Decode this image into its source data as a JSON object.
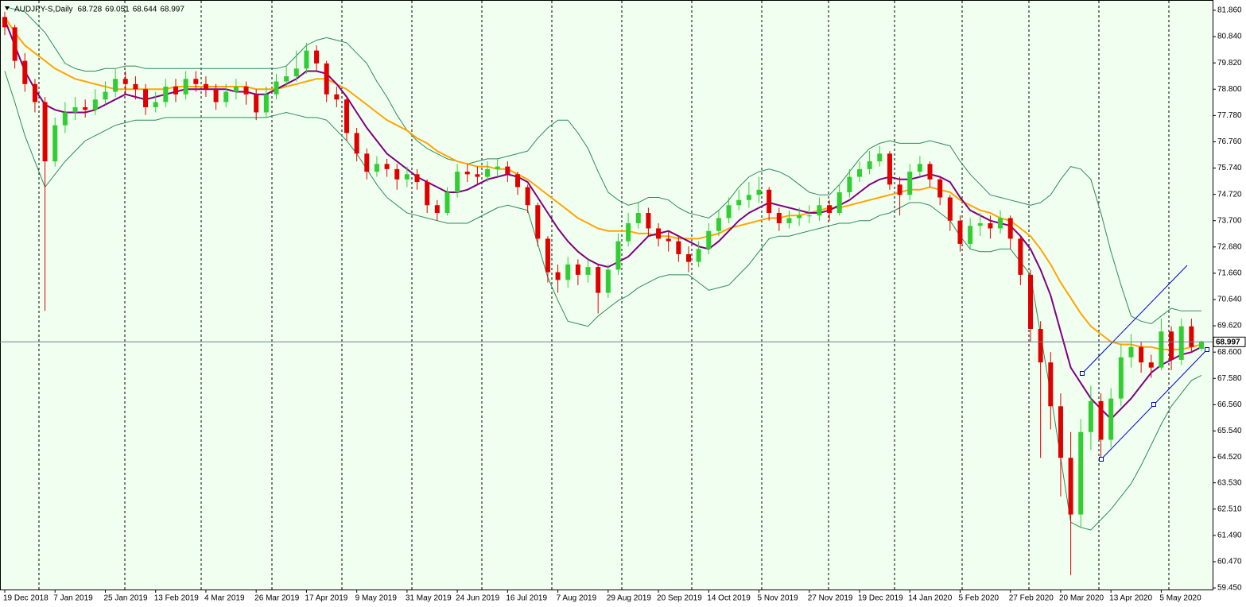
{
  "chart_data": {
    "type": "candlestick",
    "title": "AUDJPY-S,Daily",
    "header_values": [
      68.728,
      69.051,
      68.644,
      68.997
    ],
    "last_price": 68.997,
    "up_color": "#32cd32",
    "down_color": "#e00000",
    "background": "#f0fff0",
    "ylim": [
      59.39,
      82.26
    ],
    "yticks": [
      {
        "value": 81.86,
        "label": "81.860"
      },
      {
        "value": 80.84,
        "label": "80.840"
      },
      {
        "value": 79.82,
        "label": "79.820"
      },
      {
        "value": 78.8,
        "label": "78.800"
      },
      {
        "value": 77.78,
        "label": "77.780"
      },
      {
        "value": 76.76,
        "label": "76.760"
      },
      {
        "value": 75.74,
        "label": "75.740"
      },
      {
        "value": 74.72,
        "label": "74.720"
      },
      {
        "value": 73.7,
        "label": "73.700"
      },
      {
        "value": 72.68,
        "label": "72.680"
      },
      {
        "value": 71.66,
        "label": "71.660"
      },
      {
        "value": 70.64,
        "label": "70.640"
      },
      {
        "value": 69.62,
        "label": "69.620"
      },
      {
        "value": 68.6,
        "label": "68.600"
      },
      {
        "value": 67.58,
        "label": "67.580"
      },
      {
        "value": 66.56,
        "label": "66.560"
      },
      {
        "value": 65.54,
        "label": "65.540"
      },
      {
        "value": 64.52,
        "label": "64.520"
      },
      {
        "value": 63.53,
        "label": "63.530"
      },
      {
        "value": 62.51,
        "label": "62.510"
      },
      {
        "value": 61.49,
        "label": "61.490"
      },
      {
        "value": 60.47,
        "label": "60.470"
      },
      {
        "value": 59.45,
        "label": "59.450"
      }
    ],
    "categories": [
      "19 Dec 2018",
      null,
      null,
      null,
      null,
      "7 Jan 2019",
      null,
      null,
      null,
      null,
      "25 Jan 2019",
      null,
      null,
      null,
      null,
      "13 Feb 2019",
      null,
      null,
      null,
      null,
      "4 Mar 2019",
      null,
      null,
      null,
      null,
      "26 Mar 2019",
      null,
      null,
      null,
      null,
      "17 Apr 2019",
      null,
      null,
      null,
      null,
      "9 May 2019",
      null,
      null,
      null,
      null,
      "31 May 2019",
      null,
      null,
      null,
      null,
      "24 Jun 2019",
      null,
      null,
      null,
      null,
      "16 Jul 2019",
      null,
      null,
      null,
      null,
      "7 Aug 2019",
      null,
      null,
      null,
      null,
      "29 Aug 2019",
      null,
      null,
      null,
      null,
      "20 Sep 2019",
      null,
      null,
      null,
      null,
      "14 Oct 2019",
      null,
      null,
      null,
      null,
      "5 Nov 2019",
      null,
      null,
      null,
      null,
      "27 Nov 2019",
      null,
      null,
      null,
      null,
      "19 Dec 2019",
      null,
      null,
      null,
      null,
      "14 Jan 2020",
      null,
      null,
      null,
      null,
      "5 Feb 2020",
      null,
      null,
      null,
      null,
      "27 Feb 2020",
      null,
      null,
      null,
      null,
      "20 Mar 2020",
      null,
      null,
      null,
      null,
      "13 Apr 2020",
      null,
      null,
      null,
      null,
      "5 May 2020",
      null,
      null,
      null,
      null
    ],
    "open": [
      81.6,
      81.2,
      79.9,
      79.0,
      78.3,
      76.0,
      77.4,
      77.9,
      78.1,
      78.0,
      78.4,
      78.7,
      79.2,
      79.0,
      78.8,
      78.1,
      78.3,
      78.9,
      78.6,
      79.2,
      79.0,
      78.8,
      78.3,
      78.7,
      78.9,
      78.6,
      77.9,
      78.6,
      79.1,
      79.3,
      79.6,
      80.3,
      79.8,
      78.6,
      78.4,
      77.1,
      76.3,
      75.6,
      75.9,
      75.7,
      75.3,
      75.5,
      75.2,
      74.3,
      74.0,
      74.8,
      75.6,
      75.5,
      75.4,
      75.7,
      75.8,
      75.5,
      75.0,
      74.3,
      73.0,
      71.7,
      71.4,
      72.0,
      71.6,
      71.9,
      70.9,
      71.8,
      72.9,
      73.6,
      74.0,
      73.4,
      73.0,
      72.9,
      72.4,
      72.1,
      72.6,
      73.3,
      73.8,
      74.3,
      74.5,
      74.7,
      74.9,
      74.0,
      73.6,
      73.8,
      73.9,
      73.9,
      74.3,
      74.0,
      74.8,
      75.4,
      75.7,
      76.0,
      76.3,
      75.1,
      74.7,
      75.6,
      75.9,
      75.3,
      74.6,
      73.7,
      72.8,
      73.5,
      73.6,
      73.4,
      73.8,
      73.0,
      71.6,
      69.5,
      68.2,
      66.5,
      64.5,
      62.3,
      65.5,
      66.7,
      65.2,
      66.8,
      68.4,
      68.8,
      68.2,
      68.0,
      69.4,
      68.3,
      69.6,
      68.728
    ],
    "high": [
      81.8,
      81.3,
      80.2,
      79.2,
      78.5,
      77.7,
      78.3,
      78.5,
      78.4,
      78.8,
      79.1,
      79.6,
      79.5,
      79.3,
      79.0,
      78.7,
      79.2,
      79.2,
      79.5,
      79.5,
      79.3,
      79.0,
      79.0,
      79.2,
      79.1,
      78.8,
      78.9,
      79.4,
      79.7,
      80.3,
      80.6,
      80.5,
      79.9,
      78.9,
      78.5,
      77.3,
      76.5,
      76.2,
      76.1,
      75.9,
      75.8,
      75.7,
      75.3,
      74.5,
      75.0,
      75.9,
      75.9,
      75.8,
      76.0,
      76.1,
      76.0,
      75.6,
      75.1,
      74.4,
      73.1,
      72.0,
      72.3,
      72.2,
      72.2,
      72.0,
      72.0,
      73.2,
      74.0,
      74.4,
      74.2,
      73.6,
      73.3,
      73.1,
      72.7,
      72.9,
      73.6,
      74.1,
      74.6,
      74.9,
      75.2,
      75.4,
      75.0,
      74.2,
      74.1,
      74.2,
      74.3,
      74.6,
      74.5,
      75.1,
      75.7,
      76.0,
      76.4,
      76.6,
      76.4,
      75.4,
      75.9,
      76.2,
      76.0,
      75.4,
      74.7,
      73.9,
      73.8,
      74.0,
      73.9,
      74.1,
      73.9,
      73.1,
      71.8,
      69.8,
      68.6,
      67.0,
      65.5,
      66.0,
      67.3,
      67.0,
      67.2,
      68.9,
      69.3,
      69.0,
      68.5,
      69.9,
      69.6,
      69.9,
      69.9,
      69.051
    ],
    "low": [
      80.9,
      79.6,
      78.7,
      77.9,
      70.2,
      75.8,
      77.1,
      77.6,
      77.7,
      77.8,
      78.2,
      78.5,
      78.6,
      78.4,
      77.8,
      77.9,
      78.1,
      78.3,
      78.4,
      78.7,
      78.5,
      78.0,
      78.1,
      78.4,
      78.2,
      77.6,
      77.7,
      78.4,
      78.9,
      79.1,
      79.4,
      79.5,
      78.3,
      78.1,
      76.8,
      76.0,
      75.3,
      75.4,
      75.4,
      74.9,
      75.0,
      74.9,
      74.0,
      73.7,
      73.9,
      74.6,
      75.2,
      75.1,
      75.2,
      75.4,
      75.2,
      74.7,
      74.0,
      72.7,
      71.3,
      70.9,
      71.1,
      71.2,
      71.3,
      70.1,
      70.7,
      71.6,
      72.7,
      73.4,
      73.1,
      72.7,
      72.5,
      72.1,
      71.7,
      71.9,
      72.4,
      73.1,
      73.6,
      74.1,
      74.2,
      74.4,
      73.7,
      73.3,
      73.4,
      73.5,
      73.6,
      73.7,
      73.7,
      73.9,
      74.6,
      75.2,
      75.5,
      75.8,
      74.9,
      73.9,
      74.5,
      75.4,
      75.0,
      74.3,
      73.3,
      72.5,
      72.6,
      73.1,
      73.0,
      73.2,
      72.6,
      71.2,
      69.0,
      64.5,
      65.6,
      63.0,
      59.95,
      61.8,
      64.8,
      64.4,
      64.9,
      66.5,
      68.0,
      67.8,
      67.6,
      67.9,
      67.9,
      68.1,
      68.6,
      68.644
    ],
    "close": [
      81.2,
      79.9,
      79.0,
      78.3,
      76.0,
      77.4,
      77.9,
      78.1,
      78.0,
      78.4,
      78.7,
      79.2,
      79.0,
      78.8,
      78.1,
      78.3,
      78.9,
      78.6,
      79.2,
      79.0,
      78.8,
      78.3,
      78.7,
      78.9,
      78.6,
      77.9,
      78.6,
      79.1,
      79.3,
      79.6,
      80.3,
      79.8,
      78.6,
      78.4,
      77.1,
      76.3,
      75.6,
      75.9,
      75.7,
      75.3,
      75.5,
      75.2,
      74.3,
      74.0,
      74.8,
      75.6,
      75.5,
      75.4,
      75.7,
      75.8,
      75.5,
      75.0,
      74.3,
      73.0,
      71.7,
      71.4,
      72.0,
      71.6,
      71.9,
      70.9,
      71.8,
      72.9,
      73.6,
      74.0,
      73.4,
      73.0,
      72.9,
      72.4,
      72.1,
      72.6,
      73.3,
      73.8,
      74.3,
      74.5,
      74.7,
      74.9,
      74.0,
      73.6,
      73.8,
      73.9,
      73.9,
      74.3,
      74.0,
      74.8,
      75.4,
      75.7,
      76.0,
      76.3,
      75.1,
      74.7,
      75.6,
      75.9,
      75.3,
      74.6,
      73.7,
      72.8,
      73.5,
      73.6,
      73.4,
      73.8,
      73.0,
      71.6,
      69.5,
      68.2,
      66.5,
      64.5,
      62.3,
      65.5,
      66.7,
      65.2,
      66.8,
      68.4,
      68.8,
      68.2,
      68.0,
      69.4,
      68.3,
      69.6,
      68.8,
      68.997
    ],
    "indicators": [
      {
        "color": "#2e8b57",
        "values": [
          82.0,
          81.9,
          81.8,
          81.4,
          81.0,
          80.4,
          79.8,
          79.6,
          79.5,
          79.5,
          79.6,
          79.6,
          79.7,
          79.7,
          79.6,
          79.6,
          79.6,
          79.6,
          79.6,
          79.6,
          79.6,
          79.6,
          79.6,
          79.6,
          79.6,
          79.6,
          79.6,
          79.6,
          79.7,
          80.1,
          80.5,
          80.7,
          80.8,
          80.7,
          80.6,
          80.2,
          79.8,
          79.1,
          78.5,
          77.8,
          77.2,
          76.8,
          76.5,
          76.3,
          76.1,
          76.0,
          75.9,
          76.0,
          76.1,
          76.1,
          76.2,
          76.3,
          76.4,
          76.9,
          77.3,
          77.6,
          77.6,
          77.1,
          76.5,
          75.6,
          74.8,
          74.5,
          74.3,
          74.4,
          74.6,
          74.6,
          74.5,
          74.2,
          74.0,
          73.9,
          73.8,
          74.1,
          74.5,
          75.0,
          75.4,
          75.6,
          75.7,
          75.6,
          75.4,
          75.1,
          74.8,
          74.7,
          74.7,
          75.1,
          75.6,
          76.1,
          76.5,
          76.7,
          76.8,
          76.7,
          76.7,
          76.7,
          76.8,
          76.7,
          76.6,
          76.0,
          75.5,
          75.1,
          74.7,
          74.6,
          74.5,
          74.4,
          74.3,
          74.4,
          74.7,
          75.3,
          75.8,
          75.7,
          75.3,
          74.0,
          72.5,
          71.2,
          70.0,
          69.8,
          69.7,
          70.0,
          70.3,
          70.2,
          70.2,
          70.2
        ]
      },
      {
        "color": "#2e8b57",
        "values": [
          79.5,
          78.3,
          77.0,
          76.0,
          75.0,
          75.5,
          76.0,
          76.4,
          76.8,
          77.0,
          77.2,
          77.4,
          77.5,
          77.6,
          77.6,
          77.6,
          77.7,
          77.7,
          77.7,
          77.7,
          77.7,
          77.7,
          77.7,
          77.7,
          77.7,
          77.7,
          77.7,
          77.8,
          77.9,
          77.8,
          77.7,
          77.7,
          77.6,
          77.2,
          76.8,
          76.3,
          75.7,
          75.1,
          74.6,
          74.3,
          74.0,
          73.9,
          73.8,
          73.7,
          73.6,
          73.6,
          73.6,
          73.8,
          74.0,
          74.2,
          74.3,
          74.2,
          74.1,
          72.8,
          71.5,
          70.6,
          69.8,
          69.7,
          69.6,
          70.0,
          70.3,
          70.6,
          70.8,
          71.1,
          71.3,
          71.5,
          71.6,
          71.6,
          71.6,
          71.3,
          71.0,
          71.1,
          71.2,
          71.6,
          72.0,
          72.5,
          73.0,
          73.1,
          73.1,
          73.2,
          73.3,
          73.4,
          73.5,
          73.6,
          73.6,
          73.7,
          73.7,
          73.9,
          74.0,
          74.2,
          74.4,
          74.4,
          74.3,
          74.0,
          73.7,
          73.1,
          72.6,
          72.5,
          72.5,
          72.6,
          72.6,
          72.1,
          71.6,
          69.3,
          67.0,
          64.5,
          62.0,
          61.8,
          61.7,
          62.1,
          62.5,
          63.0,
          63.5,
          64.2,
          65.0,
          65.8,
          66.5,
          67.0,
          67.5,
          67.7
        ]
      },
      {
        "color": "#ffa500",
        "values": [
          81.6,
          81.0,
          80.5,
          80.2,
          79.9,
          79.6,
          79.4,
          79.2,
          79.1,
          79.0,
          78.9,
          78.8,
          78.8,
          78.8,
          78.8,
          78.8,
          78.8,
          78.9,
          78.9,
          78.9,
          78.9,
          78.9,
          78.9,
          78.9,
          78.9,
          78.8,
          78.8,
          78.8,
          78.9,
          79.0,
          79.1,
          79.2,
          79.2,
          79.0,
          78.8,
          78.5,
          78.2,
          77.9,
          77.6,
          77.4,
          77.2,
          76.9,
          76.7,
          76.4,
          76.2,
          76.0,
          75.9,
          75.8,
          75.8,
          75.7,
          75.7,
          75.5,
          75.3,
          75.0,
          74.7,
          74.4,
          74.1,
          73.8,
          73.6,
          73.4,
          73.3,
          73.3,
          73.3,
          73.2,
          73.2,
          73.1,
          73.1,
          73.0,
          73.0,
          73.0,
          73.1,
          73.2,
          73.4,
          73.5,
          73.6,
          73.7,
          73.8,
          73.8,
          73.9,
          73.9,
          74.0,
          74.1,
          74.2,
          74.2,
          74.3,
          74.4,
          74.5,
          74.6,
          74.7,
          74.8,
          74.9,
          74.9,
          75.0,
          74.9,
          74.8,
          74.5,
          74.3,
          74.1,
          74.0,
          73.8,
          73.7,
          73.4,
          73.1,
          72.6,
          72.0,
          71.3,
          70.7,
          70.1,
          69.6,
          69.3,
          69.0,
          68.9,
          68.9,
          68.8,
          68.8,
          68.7,
          68.7,
          68.7,
          68.8,
          68.9
        ]
      },
      {
        "color": "#800080",
        "values": [
          81.5,
          80.5,
          79.5,
          78.8,
          78.2,
          78.0,
          77.9,
          77.9,
          77.9,
          78.0,
          78.2,
          78.4,
          78.6,
          78.5,
          78.4,
          78.5,
          78.6,
          78.7,
          78.8,
          78.8,
          78.8,
          78.8,
          78.8,
          78.7,
          78.7,
          78.6,
          78.6,
          78.8,
          79.0,
          79.2,
          79.5,
          79.5,
          79.4,
          79.0,
          78.5,
          77.9,
          77.3,
          76.8,
          76.3,
          76.0,
          75.7,
          75.4,
          75.2,
          75.0,
          74.8,
          74.8,
          74.9,
          75.1,
          75.3,
          75.4,
          75.5,
          75.4,
          75.2,
          74.6,
          74.0,
          73.4,
          72.9,
          72.5,
          72.2,
          72.0,
          71.9,
          72.1,
          72.3,
          72.7,
          73.1,
          73.2,
          73.3,
          73.1,
          72.9,
          72.7,
          72.6,
          72.9,
          73.3,
          73.7,
          74.0,
          74.2,
          74.4,
          74.3,
          74.2,
          74.1,
          74.0,
          74.0,
          74.1,
          74.3,
          74.5,
          74.8,
          75.1,
          75.3,
          75.4,
          75.3,
          75.3,
          75.4,
          75.5,
          75.4,
          75.2,
          74.6,
          74.1,
          73.9,
          73.7,
          73.6,
          73.5,
          73.1,
          72.6,
          71.8,
          70.8,
          69.4,
          68.0,
          67.4,
          66.8,
          66.4,
          66.0,
          66.4,
          66.8,
          67.3,
          67.8,
          68.1,
          68.3,
          68.5,
          68.6,
          68.8
        ]
      }
    ]
  }
}
